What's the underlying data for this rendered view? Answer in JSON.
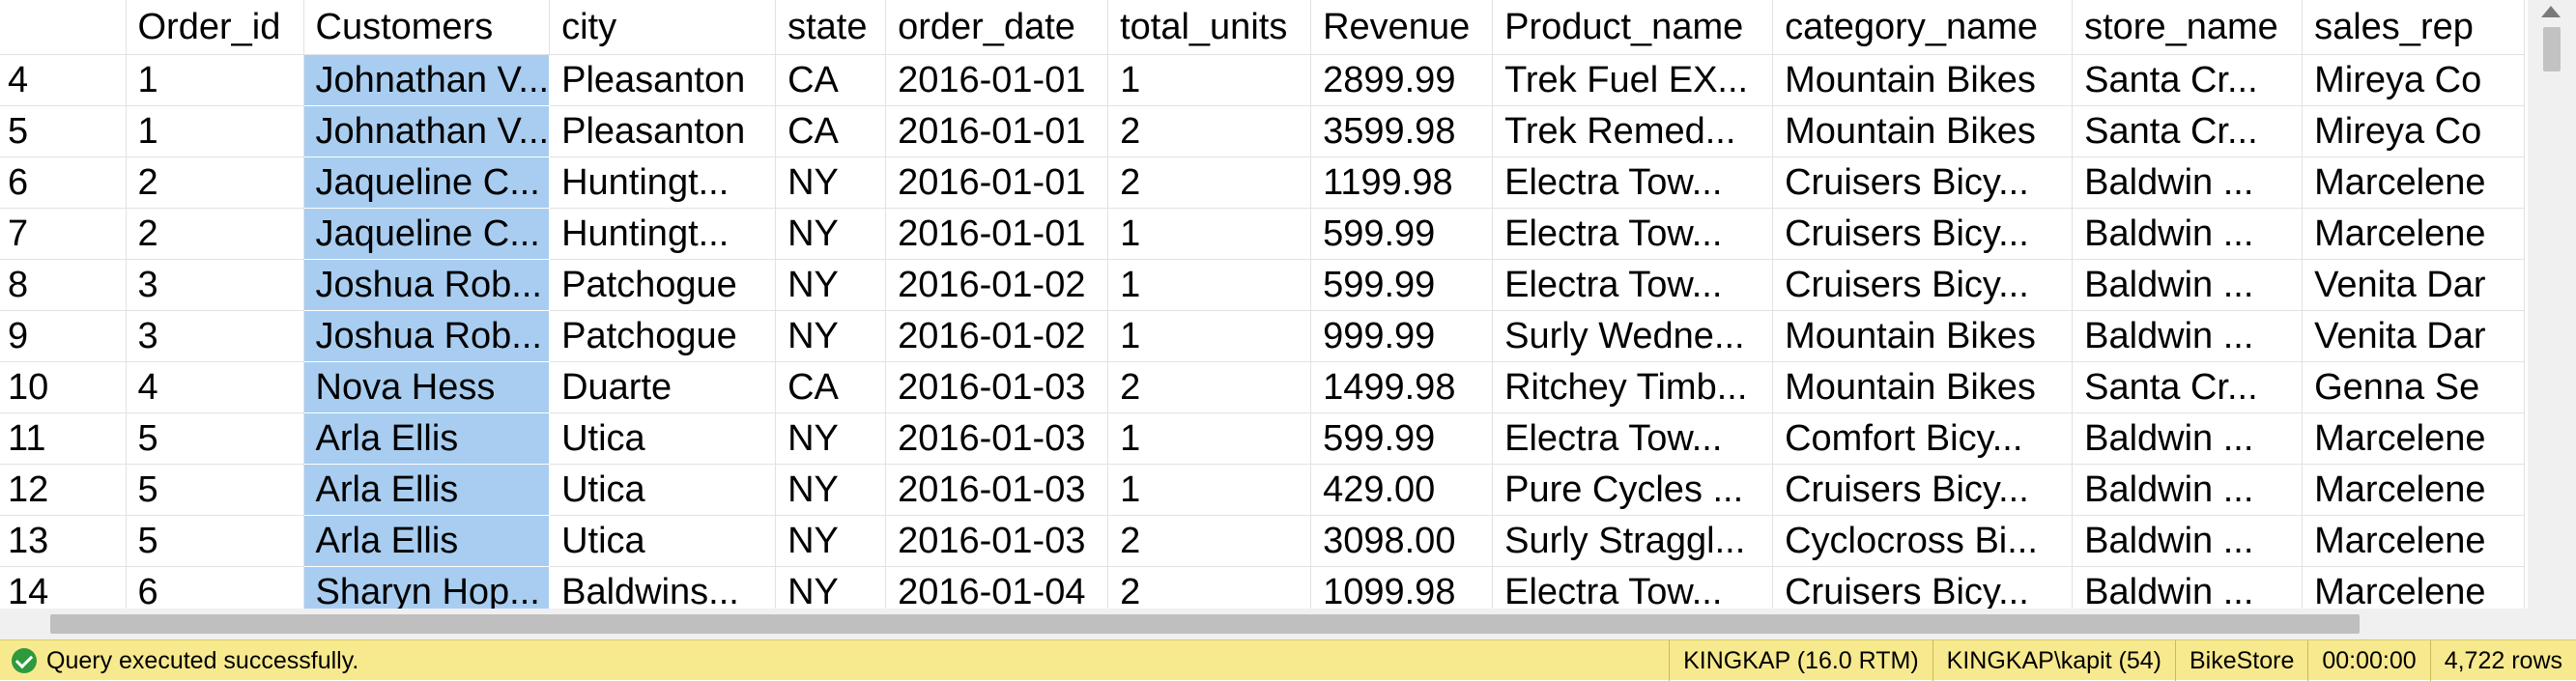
{
  "grid": {
    "columns": [
      {
        "key": "rownum",
        "label": ""
      },
      {
        "key": "order_id",
        "label": "Order_id"
      },
      {
        "key": "customers",
        "label": "Customers"
      },
      {
        "key": "city",
        "label": "city"
      },
      {
        "key": "state",
        "label": "state"
      },
      {
        "key": "order_date",
        "label": "order_date"
      },
      {
        "key": "total_units",
        "label": "total_units"
      },
      {
        "key": "revenue",
        "label": "Revenue"
      },
      {
        "key": "product_name",
        "label": "Product_name"
      },
      {
        "key": "category_name",
        "label": "category_name"
      },
      {
        "key": "store_name",
        "label": "store_name"
      },
      {
        "key": "sales_rep",
        "label": "sales_rep"
      }
    ],
    "selected_column": "customers",
    "rows": [
      [
        "4",
        "1",
        "Johnathan V...",
        "Pleasanton",
        "CA",
        "2016-01-01",
        "1",
        "2899.99",
        "Trek Fuel EX...",
        "Mountain Bikes",
        "Santa Cr...",
        "Mireya Co"
      ],
      [
        "5",
        "1",
        "Johnathan V...",
        "Pleasanton",
        "CA",
        "2016-01-01",
        "2",
        "3599.98",
        "Trek Remed...",
        "Mountain Bikes",
        "Santa Cr...",
        "Mireya Co"
      ],
      [
        "6",
        "2",
        "Jaqueline C...",
        "Huntingt...",
        "NY",
        "2016-01-01",
        "2",
        "1199.98",
        "Electra Tow...",
        "Cruisers Bicy...",
        "Baldwin ...",
        "Marcelene"
      ],
      [
        "7",
        "2",
        "Jaqueline C...",
        "Huntingt...",
        "NY",
        "2016-01-01",
        "1",
        "599.99",
        "Electra Tow...",
        "Cruisers Bicy...",
        "Baldwin ...",
        "Marcelene"
      ],
      [
        "8",
        "3",
        "Joshua Rob...",
        "Patchogue",
        "NY",
        "2016-01-02",
        "1",
        "599.99",
        "Electra Tow...",
        "Cruisers Bicy...",
        "Baldwin ...",
        "Venita Dar"
      ],
      [
        "9",
        "3",
        "Joshua Rob...",
        "Patchogue",
        "NY",
        "2016-01-02",
        "1",
        "999.99",
        "Surly Wedne...",
        "Mountain Bikes",
        "Baldwin ...",
        "Venita Dar"
      ],
      [
        "10",
        "4",
        "Nova Hess",
        "Duarte",
        "CA",
        "2016-01-03",
        "2",
        "1499.98",
        "Ritchey Timb...",
        "Mountain Bikes",
        "Santa Cr...",
        "Genna Se"
      ],
      [
        "11",
        "5",
        "Arla Ellis",
        "Utica",
        "NY",
        "2016-01-03",
        "1",
        "599.99",
        "Electra Tow...",
        "Comfort Bicy...",
        "Baldwin ...",
        "Marcelene"
      ],
      [
        "12",
        "5",
        "Arla Ellis",
        "Utica",
        "NY",
        "2016-01-03",
        "1",
        "429.00",
        "Pure Cycles ...",
        "Cruisers Bicy...",
        "Baldwin ...",
        "Marcelene"
      ],
      [
        "13",
        "5",
        "Arla Ellis",
        "Utica",
        "NY",
        "2016-01-03",
        "2",
        "3098.00",
        "Surly Straggl...",
        "Cyclocross Bi...",
        "Baldwin ...",
        "Marcelene"
      ],
      [
        "14",
        "6",
        "Sharyn Hop...",
        "Baldwins...",
        "NY",
        "2016-01-04",
        "2",
        "1099.98",
        "Electra Tow...",
        "Cruisers Bicy...",
        "Baldwin ...",
        "Marcelene"
      ]
    ]
  },
  "status": {
    "message": "Query executed successfully.",
    "server": "KINGKAP (16.0 RTM)",
    "user": "KINGKAP\\kapit (54)",
    "database": "BikeStore",
    "elapsed": "00:00:00",
    "rows": "4,722 rows"
  },
  "colors": {
    "selection": "#a8cdf0",
    "status_bar": "#f7e98e",
    "success_icon": "#2e9a3c"
  },
  "icons": {
    "status": "success-check-icon"
  }
}
